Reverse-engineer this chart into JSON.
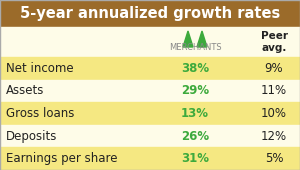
{
  "title": "5-year annualized growth rates",
  "title_bg": "#9B6B2A",
  "title_color": "#FFFFFF",
  "rows": [
    {
      "label": "Net income",
      "merchants": "38%",
      "peer": "9%"
    },
    {
      "label": "Assets",
      "merchants": "29%",
      "peer": "11%"
    },
    {
      "label": "Gross loans",
      "merchants": "13%",
      "peer": "10%"
    },
    {
      "label": "Deposits",
      "merchants": "26%",
      "peer": "12%"
    },
    {
      "label": "Earnings per share",
      "merchants": "31%",
      "peer": "5%"
    }
  ],
  "row_bg": "#F5E882",
  "header_bg": "#FEFCE8",
  "merchants_color": "#3DAA3D",
  "peer_color": "#222222",
  "label_color": "#222222",
  "logo_green": "#3DAA3D",
  "merchants_text_color": "#888888",
  "title_fontsize": 10.5,
  "header_fontsize": 7.5,
  "data_fontsize": 8.5,
  "label_fontsize": 8.5
}
